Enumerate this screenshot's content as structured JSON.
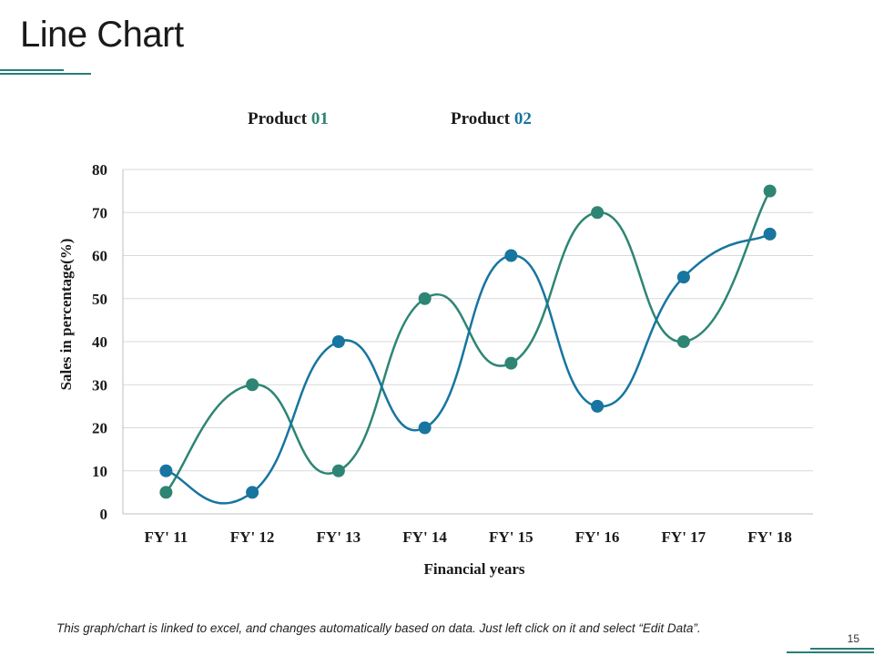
{
  "slide": {
    "title": "Line Chart",
    "footnote": "This graph/chart is linked to excel, and changes automatically based on data. Just left click on it and select “Edit Data”.",
    "page_number": "15"
  },
  "colors": {
    "series1": "#2e8574",
    "series2": "#17759f",
    "gridline": "#d9d9d9",
    "accent": "#2a7d7a"
  },
  "chart_data": {
    "type": "line",
    "title": "",
    "xlabel": "Financial years",
    "ylabel": "Sales in percentage(%)",
    "ylim": [
      0,
      80
    ],
    "ytick_step": 10,
    "smooth": true,
    "categories": [
      "FY' 11",
      "FY' 12",
      "FY' 13",
      "FY' 14",
      "FY' 15",
      "FY' 16",
      "FY' 17",
      "FY' 18"
    ],
    "series": [
      {
        "name": "Product 01",
        "name_word": "Product",
        "name_num": "01",
        "color": "#2e8574",
        "values": [
          5,
          30,
          10,
          50,
          35,
          70,
          40,
          75
        ]
      },
      {
        "name": "Product 02",
        "name_word": "Product",
        "name_num": "02",
        "color": "#17759f",
        "values": [
          10,
          5,
          40,
          20,
          60,
          25,
          55,
          65
        ]
      }
    ],
    "legend_position": "top"
  }
}
